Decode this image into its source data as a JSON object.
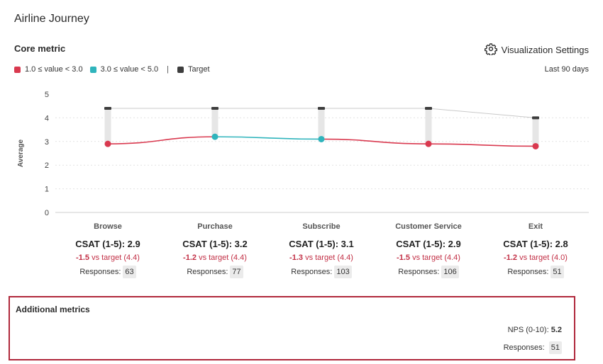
{
  "page": {
    "title": "Airline Journey"
  },
  "core": {
    "section_title": "Core metric",
    "settings_label": "Visualization Settings",
    "period": "Last 90 days",
    "legend": [
      {
        "label": "1.0 ≤ value < 3.0",
        "color": "#d9394f"
      },
      {
        "label": "3.0 ≤ value < 5.0",
        "color": "#2fb4bc"
      }
    ],
    "legend_separator": "|",
    "legend_target": {
      "label": "Target",
      "color": "#3d3d3d"
    },
    "responses_label": "Responses:"
  },
  "chart_data": {
    "type": "line",
    "ylabel": "Average",
    "ylim": [
      0,
      5
    ],
    "yticks": [
      0,
      1,
      2,
      3,
      4,
      5
    ],
    "grid": true,
    "categories": [
      "Browse",
      "Purchase",
      "Subscribe",
      "Customer Service",
      "Exit"
    ],
    "values": [
      2.9,
      3.2,
      3.1,
      2.9,
      2.8
    ],
    "targets": [
      4.4,
      4.4,
      4.4,
      4.4,
      4.0
    ],
    "metric_labels": [
      "CSAT (1-5): 2.9",
      "CSAT (1-5): 3.2",
      "CSAT (1-5): 3.1",
      "CSAT (1-5): 2.9",
      "CSAT (1-5): 2.8"
    ],
    "diffs": [
      "-1.5",
      "-1.2",
      "-1.3",
      "-1.5",
      "-1.2"
    ],
    "diff_texts": [
      "vs target (4.4)",
      "vs target (4.4)",
      "vs target (4.4)",
      "vs target (4.4)",
      "vs target (4.0)"
    ],
    "responses": [
      63,
      77,
      103,
      106,
      51
    ],
    "colors": {
      "low": "#d9394f",
      "high": "#2fb4bc",
      "target": "#3d3d3d"
    }
  },
  "additional": {
    "title": "Additional metrics",
    "nps_label": "NPS (0-10):",
    "nps_value": "5.2",
    "responses_label": "Responses:",
    "responses": "51"
  }
}
